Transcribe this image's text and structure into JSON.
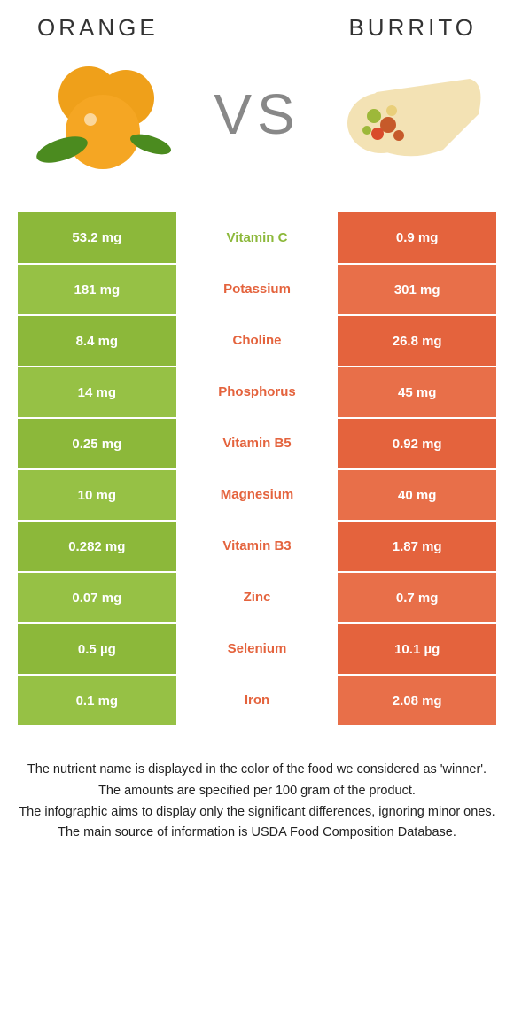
{
  "header": {
    "left_title": "ORANGE",
    "right_title": "BURRITO",
    "vs": "VS"
  },
  "colors": {
    "orange_food": "#8cb83a",
    "burrito_food": "#e4633d",
    "orange_food_alt": "#96c145",
    "burrito_food_alt": "#e86f49",
    "row_bg_even_left": "#8cb83a",
    "row_bg_odd_left": "#96c145",
    "row_bg_even_right": "#e4633d",
    "row_bg_odd_right": "#e86f49"
  },
  "nutrients": [
    {
      "name": "Vitamin C",
      "left": "53.2 mg",
      "right": "0.9 mg",
      "winner": "left"
    },
    {
      "name": "Potassium",
      "left": "181 mg",
      "right": "301 mg",
      "winner": "right"
    },
    {
      "name": "Choline",
      "left": "8.4 mg",
      "right": "26.8 mg",
      "winner": "right"
    },
    {
      "name": "Phosphorus",
      "left": "14 mg",
      "right": "45 mg",
      "winner": "right"
    },
    {
      "name": "Vitamin B5",
      "left": "0.25 mg",
      "right": "0.92 mg",
      "winner": "right"
    },
    {
      "name": "Magnesium",
      "left": "10 mg",
      "right": "40 mg",
      "winner": "right"
    },
    {
      "name": "Vitamin B3",
      "left": "0.282 mg",
      "right": "1.87 mg",
      "winner": "right"
    },
    {
      "name": "Zinc",
      "left": "0.07 mg",
      "right": "0.7 mg",
      "winner": "right"
    },
    {
      "name": "Selenium",
      "left": "0.5 µg",
      "right": "10.1 µg",
      "winner": "right"
    },
    {
      "name": "Iron",
      "left": "0.1 mg",
      "right": "2.08 mg",
      "winner": "right"
    }
  ],
  "footer": {
    "line1": "The nutrient name is displayed in the color of the food we considered as 'winner'.",
    "line2": "The amounts are specified per 100 gram of the product.",
    "line3": "The infographic aims to display only the significant differences, ignoring minor ones.",
    "line4": "The main source of information is USDA Food Composition Database."
  }
}
